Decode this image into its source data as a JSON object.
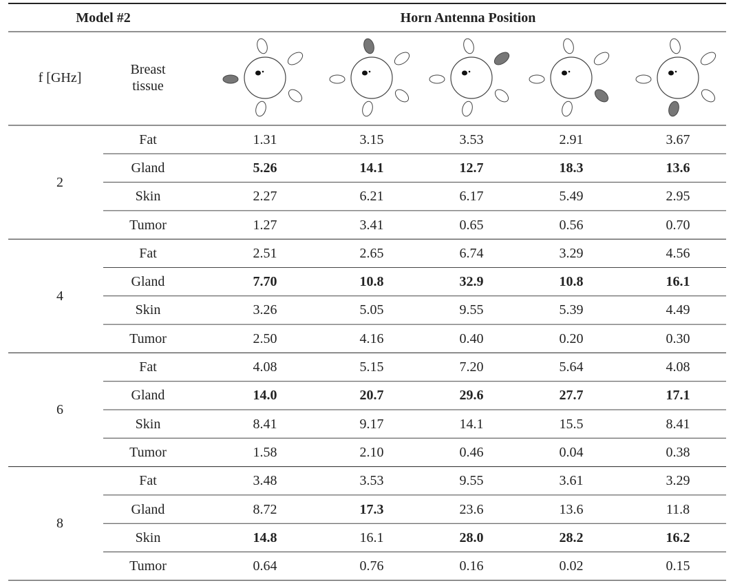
{
  "header": {
    "model": "Model #2",
    "position": "Horn Antenna Position",
    "freq": "f [GHz]",
    "tissue": "Breast tissue"
  },
  "groups": [
    {
      "freq": "2",
      "rows": [
        {
          "tissue": "Fat",
          "values": [
            "1.31",
            "3.15",
            "3.53",
            "2.91",
            "3.67"
          ],
          "bold": [
            false,
            false,
            false,
            false,
            false
          ]
        },
        {
          "tissue": "Gland",
          "values": [
            "5.26",
            "14.1",
            "12.7",
            "18.3",
            "13.6"
          ],
          "bold": [
            true,
            true,
            true,
            true,
            true
          ]
        },
        {
          "tissue": "Skin",
          "values": [
            "2.27",
            "6.21",
            "6.17",
            "5.49",
            "2.95"
          ],
          "bold": [
            false,
            false,
            false,
            false,
            false
          ]
        },
        {
          "tissue": "Tumor",
          "values": [
            "1.27",
            "3.41",
            "0.65",
            "0.56",
            "0.70"
          ],
          "bold": [
            false,
            false,
            false,
            false,
            false
          ]
        }
      ]
    },
    {
      "freq": "4",
      "rows": [
        {
          "tissue": "Fat",
          "values": [
            "2.51",
            "2.65",
            "6.74",
            "3.29",
            "4.56"
          ],
          "bold": [
            false,
            false,
            false,
            false,
            false
          ]
        },
        {
          "tissue": "Gland",
          "values": [
            "7.70",
            "10.8",
            "32.9",
            "10.8",
            "16.1"
          ],
          "bold": [
            true,
            true,
            true,
            true,
            true
          ]
        },
        {
          "tissue": "Skin",
          "values": [
            "3.26",
            "5.05",
            "9.55",
            "5.39",
            "4.49"
          ],
          "bold": [
            false,
            false,
            false,
            false,
            false
          ]
        },
        {
          "tissue": "Tumor",
          "values": [
            "2.50",
            "4.16",
            "0.40",
            "0.20",
            "0.30"
          ],
          "bold": [
            false,
            false,
            false,
            false,
            false
          ]
        }
      ]
    },
    {
      "freq": "6",
      "rows": [
        {
          "tissue": "Fat",
          "values": [
            "4.08",
            "5.15",
            "7.20",
            "5.64",
            "4.08"
          ],
          "bold": [
            false,
            false,
            false,
            false,
            false
          ]
        },
        {
          "tissue": "Gland",
          "values": [
            "14.0",
            "20.7",
            "29.6",
            "27.7",
            "17.1"
          ],
          "bold": [
            true,
            true,
            true,
            true,
            true
          ]
        },
        {
          "tissue": "Skin",
          "values": [
            "8.41",
            "9.17",
            "14.1",
            "15.5",
            "8.41"
          ],
          "bold": [
            false,
            false,
            false,
            false,
            false
          ]
        },
        {
          "tissue": "Tumor",
          "values": [
            "1.58",
            "2.10",
            "0.46",
            "0.04",
            "0.38"
          ],
          "bold": [
            false,
            false,
            false,
            false,
            false
          ]
        }
      ]
    },
    {
      "freq": "8",
      "rows": [
        {
          "tissue": "Fat",
          "values": [
            "3.48",
            "3.53",
            "9.55",
            "3.61",
            "3.29"
          ],
          "bold": [
            false,
            false,
            false,
            false,
            false
          ]
        },
        {
          "tissue": "Gland",
          "values": [
            "8.72",
            "17.3",
            "23.6",
            "13.6",
            "11.8"
          ],
          "bold": [
            false,
            true,
            false,
            false,
            false
          ]
        },
        {
          "tissue": "Skin",
          "values": [
            "14.8",
            "16.1",
            "28.0",
            "28.2",
            "16.2"
          ],
          "bold": [
            true,
            false,
            true,
            true,
            true
          ]
        },
        {
          "tissue": "Tumor",
          "values": [
            "0.64",
            "0.76",
            "0.16",
            "0.02",
            "0.15"
          ],
          "bold": [
            false,
            false,
            false,
            false,
            false
          ]
        }
      ]
    }
  ]
}
